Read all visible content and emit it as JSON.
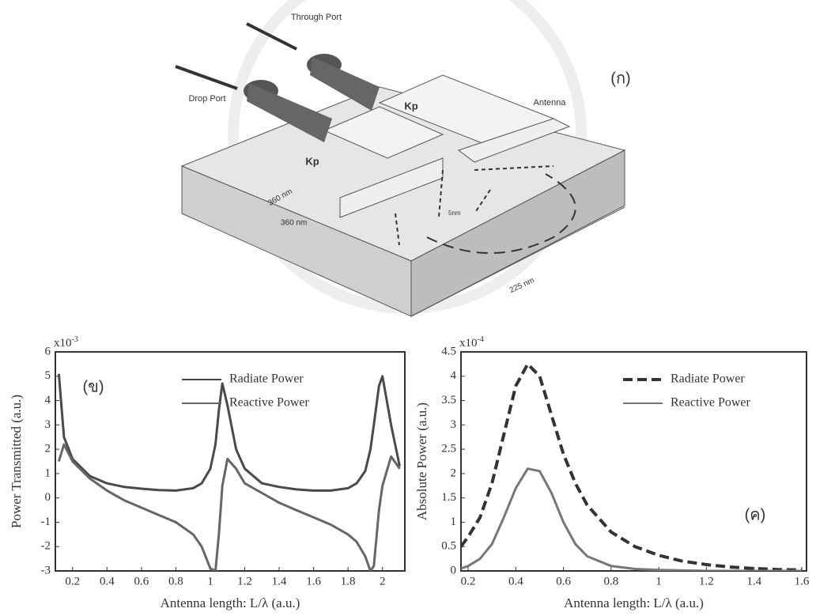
{
  "diagram": {
    "through_port": "Through Port",
    "drop_port": "Drop Port",
    "panel": "(ก)",
    "kp_top": "Kp",
    "kp_bottom": "Kp",
    "antenna": "Antenna",
    "dim_1": "360 nm",
    "dim_2": "360 nm",
    "dim_gap": "5nm",
    "dim_length": "225 nm"
  },
  "chart_data": [
    {
      "type": "line",
      "annotation": "(ข)",
      "x_label": "Antenna length: L/λ  (a.u.)",
      "y_label": "Power Transmitted (a.u.)",
      "y_multiplier": {
        "base": "x10",
        "exponent": "-3"
      },
      "x": [
        0.12,
        0.15,
        0.2,
        0.3,
        0.4,
        0.5,
        0.6,
        0.7,
        0.8,
        0.9,
        0.95,
        1.0,
        1.03,
        1.05,
        1.07,
        1.1,
        1.15,
        1.2,
        1.3,
        1.4,
        1.5,
        1.6,
        1.7,
        1.8,
        1.85,
        1.9,
        1.93,
        1.95,
        1.98,
        2.0,
        2.05,
        2.1
      ],
      "series": [
        {
          "name": "Radiate Power",
          "color": "#4a4a4a",
          "line_style": "solid",
          "values": [
            5.1,
            2.5,
            1.6,
            0.9,
            0.6,
            0.45,
            0.38,
            0.32,
            0.3,
            0.4,
            0.6,
            1.2,
            2.2,
            3.6,
            4.7,
            3.8,
            2.0,
            1.2,
            0.6,
            0.45,
            0.35,
            0.3,
            0.3,
            0.4,
            0.6,
            1.1,
            2.0,
            3.0,
            4.6,
            5.0,
            3.0,
            1.3
          ]
        },
        {
          "name": "Reactive Power",
          "color": "#666666",
          "line_style": "solid",
          "values": [
            1.5,
            2.2,
            1.5,
            0.8,
            0.3,
            -0.1,
            -0.4,
            -0.7,
            -1.0,
            -1.5,
            -2.0,
            -2.9,
            -3.0,
            -1.5,
            0.5,
            1.6,
            1.2,
            0.6,
            0.2,
            -0.2,
            -0.5,
            -0.8,
            -1.1,
            -1.5,
            -1.8,
            -2.4,
            -3.0,
            -2.8,
            -0.5,
            0.5,
            1.7,
            1.2
          ]
        }
      ],
      "xlim": [
        0.1,
        2.13
      ],
      "ylim": [
        -3,
        6
      ],
      "xticks": [
        0.2,
        0.4,
        0.6,
        0.8,
        1,
        1.2,
        1.4,
        1.6,
        1.8,
        2
      ],
      "yticks": [
        -3,
        -2,
        -1,
        0,
        1,
        2,
        3,
        4,
        5,
        6
      ],
      "grid": false,
      "legend": "upper right"
    },
    {
      "type": "line",
      "annotation": "(ค)",
      "x_label": "Antenna length: L/λ  (a.u.)",
      "y_label": "Absolute Power (a.u.)",
      "y_multiplier": {
        "base": "x10",
        "exponent": "-4"
      },
      "x": [
        0.17,
        0.2,
        0.25,
        0.3,
        0.35,
        0.4,
        0.45,
        0.5,
        0.55,
        0.6,
        0.65,
        0.7,
        0.8,
        0.9,
        1.0,
        1.1,
        1.2,
        1.3,
        1.4,
        1.5,
        1.6
      ],
      "series": [
        {
          "name": "Radiate Power",
          "color": "#333333",
          "line_style": "dashed",
          "values": [
            0.5,
            0.7,
            1.1,
            1.8,
            2.8,
            3.8,
            4.25,
            4.0,
            3.2,
            2.4,
            1.8,
            1.35,
            0.8,
            0.5,
            0.32,
            0.2,
            0.13,
            0.08,
            0.05,
            0.03,
            0.02
          ]
        },
        {
          "name": "Reactive Power",
          "color": "#777777",
          "line_style": "solid",
          "values": [
            0.05,
            0.1,
            0.25,
            0.55,
            1.1,
            1.7,
            2.1,
            2.05,
            1.6,
            1.0,
            0.55,
            0.3,
            0.1,
            0.04,
            0.02,
            0.01,
            0,
            0,
            0,
            0,
            0
          ]
        }
      ],
      "xlim": [
        0.17,
        1.62
      ],
      "ylim": [
        0,
        4.5
      ],
      "xticks": [
        0.2,
        0.4,
        0.6,
        0.8,
        1,
        1.2,
        1.4,
        1.6
      ],
      "yticks": [
        0,
        0.5,
        1,
        1.5,
        2,
        2.5,
        3,
        3.5,
        4,
        4.5
      ],
      "grid": false,
      "legend": "upper right"
    }
  ]
}
